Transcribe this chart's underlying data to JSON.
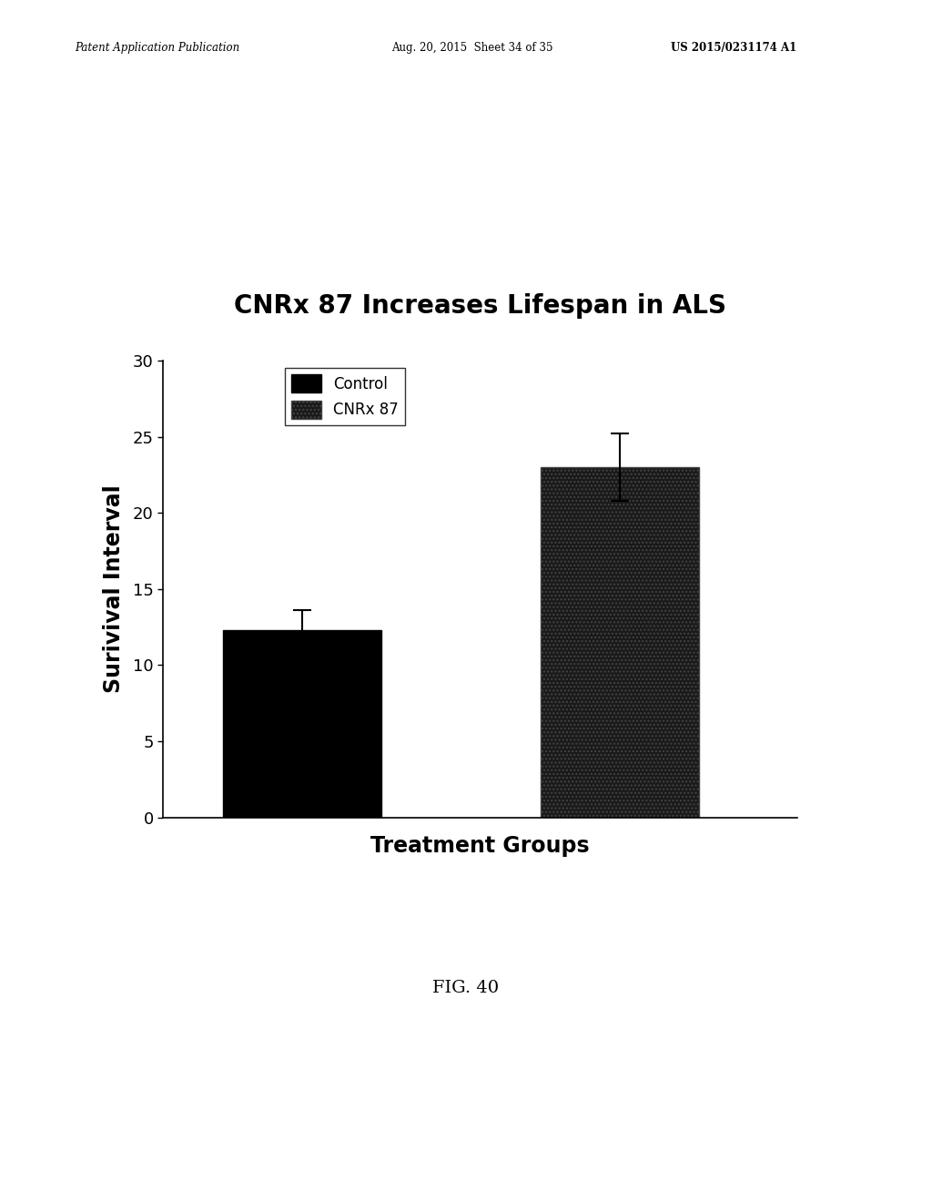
{
  "title": "CNRx 87 Increases Lifespan in ALS",
  "xlabel": "Treatment Groups",
  "ylabel": "Surivival Interval",
  "categories": [
    "Control",
    "CNRx 87"
  ],
  "values": [
    12.3,
    23.0
  ],
  "errors": [
    1.3,
    2.2
  ],
  "bar_colors": [
    "#000000",
    "#2a2a2a"
  ],
  "ylim": [
    0,
    30
  ],
  "yticks": [
    0,
    5,
    10,
    15,
    20,
    25,
    30
  ],
  "background_color": "#ffffff",
  "title_fontsize": 20,
  "axis_label_fontsize": 17,
  "tick_fontsize": 13,
  "legend_labels": [
    "Control",
    "CNRx 87"
  ],
  "legend_colors": [
    "#000000",
    "#2a2a2a"
  ],
  "header_left": "Patent Application Publication",
  "header_mid": "Aug. 20, 2015  Sheet 34 of 35",
  "header_right": "US 2015/0231174 A1",
  "fig_label": "FIG. 40"
}
